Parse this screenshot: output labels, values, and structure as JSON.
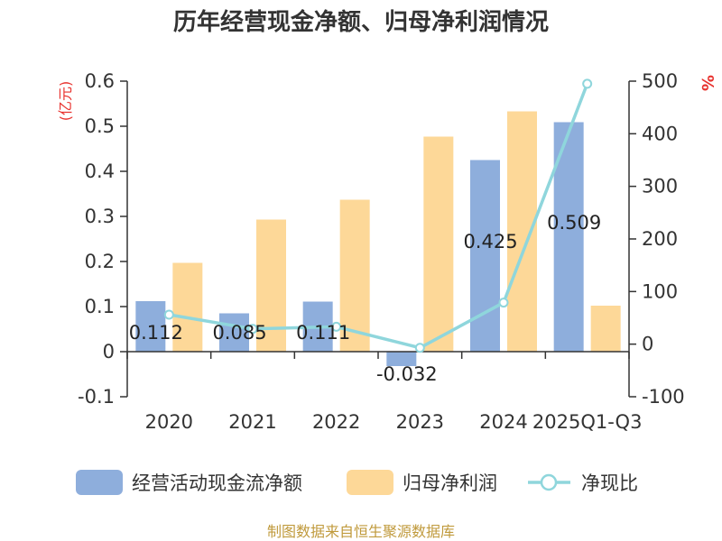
{
  "chart_data": {
    "type": "bar+line",
    "title": "历年经营现金净额、归母净利润情况",
    "categories": [
      "2020",
      "2021",
      "2022",
      "2023",
      "2024",
      "2025Q1-Q3"
    ],
    "series": [
      {
        "name": "经营活动现金流净额",
        "type": "bar",
        "axis": "left",
        "values": [
          0.112,
          0.085,
          0.111,
          -0.032,
          0.425,
          0.509
        ],
        "labels": [
          "0.112",
          "0.085",
          "0.111",
          "-0.032",
          "0.425",
          "0.509"
        ]
      },
      {
        "name": "归母净利润",
        "type": "bar",
        "axis": "left",
        "values": [
          0.197,
          0.293,
          0.337,
          0.477,
          0.533,
          0.102
        ]
      },
      {
        "name": "净现比",
        "type": "line",
        "axis": "right",
        "values": [
          56,
          29,
          33,
          -7,
          79,
          495
        ]
      }
    ],
    "y_left": {
      "unit": "(亿元)",
      "min": -0.1,
      "max": 0.6,
      "ticks": [
        -0.1,
        0,
        0.1,
        0.2,
        0.3,
        0.4,
        0.5,
        0.6
      ],
      "tick_labels": [
        "-0.1",
        "0",
        "0.1",
        "0.2",
        "0.3",
        "0.4",
        "0.5",
        "0.6"
      ]
    },
    "y_right": {
      "unit": "%",
      "min": -100,
      "max": 500,
      "ticks": [
        -100,
        0,
        100,
        200,
        300,
        400,
        500
      ],
      "tick_labels": [
        "-100",
        "0",
        "100",
        "200",
        "300",
        "400",
        "500"
      ]
    },
    "legend_position": "bottom",
    "colors": {
      "cash": "#8eaedc",
      "profit": "#fdd898",
      "ratio": "#8fd6dc",
      "axis": "#333333",
      "unit": "#e8332f",
      "source": "#c09a3c"
    }
  },
  "source": "制图数据来自恒生聚源数据库"
}
